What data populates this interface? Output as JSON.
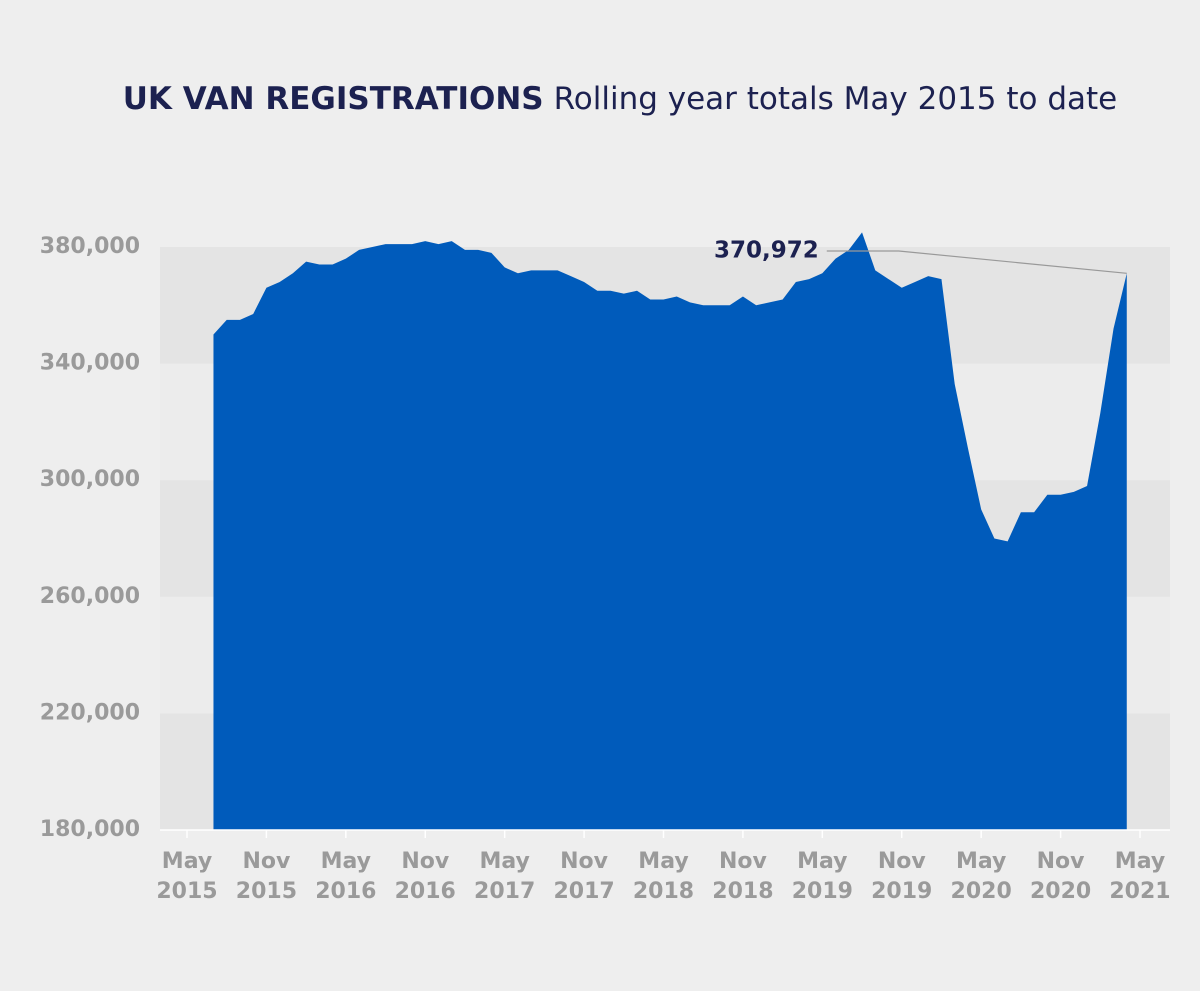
{
  "chart_data": {
    "type": "area",
    "title": "UK VAN REGISTRATIONS",
    "subtitle": "Rolling year totals May 2015 to date",
    "categories": [
      "May 2015",
      null,
      null,
      null,
      null,
      null,
      "Nov 2015",
      null,
      null,
      null,
      null,
      null,
      "May 2016",
      null,
      null,
      null,
      null,
      null,
      "Nov 2016",
      null,
      null,
      null,
      null,
      null,
      "May 2017",
      null,
      null,
      null,
      null,
      null,
      "Nov 2017",
      null,
      null,
      null,
      null,
      null,
      "May 2018",
      null,
      null,
      null,
      null,
      null,
      "Nov 2018",
      null,
      null,
      null,
      null,
      null,
      "May 2019",
      null,
      null,
      null,
      null,
      null,
      "Nov 2019",
      null,
      null,
      null,
      null,
      null,
      "May 2020",
      null,
      null,
      null,
      null,
      null,
      "Nov 2020",
      null,
      null,
      null,
      null,
      null,
      "May 2021"
    ],
    "values": [
      null,
      null,
      350000,
      355000,
      355000,
      357000,
      366000,
      368000,
      371000,
      375000,
      374000,
      374000,
      376000,
      379000,
      380000,
      381000,
      381000,
      381000,
      382000,
      381000,
      382000,
      379000,
      379000,
      378000,
      373000,
      371000,
      372000,
      372000,
      372000,
      370000,
      368000,
      365000,
      365000,
      364000,
      365000,
      362000,
      362000,
      363000,
      361000,
      360000,
      360000,
      360000,
      363000,
      360000,
      361000,
      362000,
      368000,
      369000,
      371000,
      376000,
      379000,
      385000,
      372000,
      369000,
      366000,
      368000,
      370000,
      369000,
      333000,
      311000,
      290000,
      280000,
      279000,
      289000,
      289000,
      295000,
      295000,
      296000,
      298000,
      323000,
      352000,
      370972,
      null
    ],
    "value_labels": {
      "71": "370,972"
    },
    "color": "#005bbb",
    "ylim": [
      180000,
      380000
    ],
    "yticks": [
      {
        "value": 180000,
        "label": "180,000"
      },
      {
        "value": 220000,
        "label": "220,000"
      },
      {
        "value": 260000,
        "label": "260,000"
      },
      {
        "value": 300000,
        "label": "300,000"
      },
      {
        "value": 340000,
        "label": "340,000"
      },
      {
        "value": 380000,
        "label": "380,000"
      }
    ],
    "grid": "bands"
  }
}
